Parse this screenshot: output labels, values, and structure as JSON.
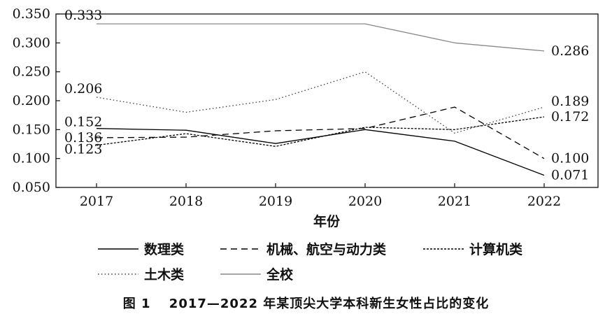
{
  "chart_data": {
    "type": "line",
    "title": "",
    "xlabel": "年份",
    "ylabel": "",
    "categories": [
      "2017",
      "2018",
      "2019",
      "2020",
      "2021",
      "2022"
    ],
    "ylim": [
      0.05,
      0.35
    ],
    "yticks": [
      "0.050",
      "0.100",
      "0.150",
      "0.200",
      "0.250",
      "0.300",
      "0.350"
    ],
    "series": [
      {
        "name": "数理类",
        "values": [
          0.152,
          0.149,
          0.126,
          0.15,
          0.13,
          0.071
        ],
        "color": "#000000",
        "style": "solid"
      },
      {
        "name": "机械、航空与动力类",
        "values": [
          0.136,
          0.137,
          0.148,
          0.152,
          0.189,
          0.1
        ],
        "color": "#000000",
        "style": "dashed"
      },
      {
        "name": "计算机类",
        "values": [
          0.123,
          0.143,
          0.121,
          0.154,
          0.15,
          0.172
        ],
        "color": "#000000",
        "style": "densely-dotted"
      },
      {
        "name": "土木类",
        "values": [
          0.206,
          0.18,
          0.202,
          0.25,
          0.144,
          0.189
        ],
        "color": "#444444",
        "style": "dotted"
      },
      {
        "name": "全校",
        "values": [
          0.333,
          0.333,
          0.333,
          0.333,
          0.3,
          0.286
        ],
        "color": "#888888",
        "style": "solid"
      }
    ],
    "data_labels": [
      {
        "text": "0.333",
        "series": 4,
        "index": 0
      },
      {
        "text": "0.206",
        "series": 3,
        "index": 0
      },
      {
        "text": "0.152",
        "series": 0,
        "index": 0
      },
      {
        "text": "0.136",
        "series": 1,
        "index": 0
      },
      {
        "text": "0.123",
        "series": 2,
        "index": 0
      },
      {
        "text": "0.286",
        "series": 4,
        "index": 5
      },
      {
        "text": "0.189",
        "series": 3,
        "index": 5
      },
      {
        "text": "0.172",
        "series": 2,
        "index": 5
      },
      {
        "text": "0.100",
        "series": 1,
        "index": 5
      },
      {
        "text": "0.071",
        "series": 0,
        "index": 5
      }
    ],
    "legend": "bottom"
  },
  "caption": "图 1　 2017—2022 年某顶尖大学本科新生女性占比的变化"
}
